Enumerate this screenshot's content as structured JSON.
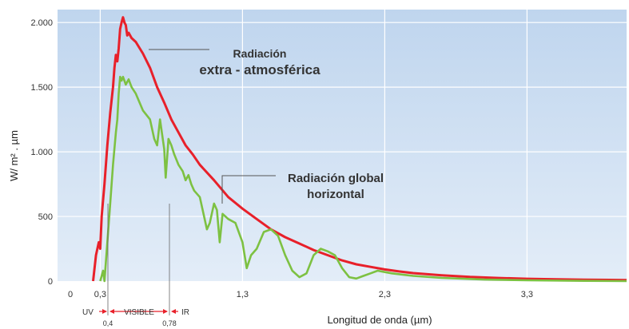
{
  "chart_data": {
    "type": "line",
    "title": "",
    "xlabel": "Longitud de onda (µm)",
    "ylabel": "W/ m² . µm",
    "xlim": [
      0,
      4.0
    ],
    "ylim": [
      0,
      2100
    ],
    "x_ticks": [
      {
        "value": 0,
        "label": "0"
      },
      {
        "value": 0.3,
        "label": "0,3"
      },
      {
        "value": 1.3,
        "label": "1,3"
      },
      {
        "value": 2.3,
        "label": "2,3"
      },
      {
        "value": 3.3,
        "label": "3,3"
      }
    ],
    "y_ticks": [
      {
        "value": 0,
        "label": "0"
      },
      {
        "value": 500,
        "label": "500"
      },
      {
        "value": 1000,
        "label": "1.000"
      },
      {
        "value": 1500,
        "label": "1.500"
      },
      {
        "value": 2000,
        "label": "2.000"
      }
    ],
    "grid": true,
    "background": "#c9dcf1",
    "series": [
      {
        "color": "#e8202a",
        "points": [
          [
            0.25,
            0
          ],
          [
            0.27,
            200
          ],
          [
            0.29,
            300
          ],
          [
            0.3,
            250
          ],
          [
            0.31,
            500
          ],
          [
            0.33,
            750
          ],
          [
            0.35,
            1050
          ],
          [
            0.37,
            1300
          ],
          [
            0.39,
            1500
          ],
          [
            0.4,
            1650
          ],
          [
            0.41,
            1750
          ],
          [
            0.42,
            1700
          ],
          [
            0.43,
            1800
          ],
          [
            0.44,
            1950
          ],
          [
            0.45,
            2000
          ],
          [
            0.46,
            2040
          ],
          [
            0.47,
            2000
          ],
          [
            0.48,
            1980
          ],
          [
            0.49,
            1900
          ],
          [
            0.5,
            1920
          ],
          [
            0.52,
            1880
          ],
          [
            0.55,
            1850
          ],
          [
            0.6,
            1760
          ],
          [
            0.65,
            1650
          ],
          [
            0.7,
            1500
          ],
          [
            0.75,
            1380
          ],
          [
            0.8,
            1250
          ],
          [
            0.85,
            1150
          ],
          [
            0.9,
            1050
          ],
          [
            0.95,
            980
          ],
          [
            1.0,
            900
          ],
          [
            1.1,
            780
          ],
          [
            1.2,
            650
          ],
          [
            1.3,
            560
          ],
          [
            1.4,
            480
          ],
          [
            1.5,
            400
          ],
          [
            1.6,
            340
          ],
          [
            1.7,
            290
          ],
          [
            1.8,
            240
          ],
          [
            1.9,
            200
          ],
          [
            2.0,
            160
          ],
          [
            2.1,
            130
          ],
          [
            2.2,
            110
          ],
          [
            2.3,
            90
          ],
          [
            2.4,
            75
          ],
          [
            2.5,
            62
          ],
          [
            2.7,
            45
          ],
          [
            2.9,
            32
          ],
          [
            3.1,
            24
          ],
          [
            3.3,
            18
          ],
          [
            3.5,
            14
          ],
          [
            3.7,
            11
          ],
          [
            4.0,
            8
          ]
        ]
      },
      {
        "color": "#7dc142",
        "points": [
          [
            0.3,
            0
          ],
          [
            0.32,
            80
          ],
          [
            0.33,
            0
          ],
          [
            0.35,
            300
          ],
          [
            0.37,
            600
          ],
          [
            0.39,
            900
          ],
          [
            0.41,
            1150
          ],
          [
            0.42,
            1250
          ],
          [
            0.43,
            1450
          ],
          [
            0.44,
            1580
          ],
          [
            0.45,
            1550
          ],
          [
            0.46,
            1580
          ],
          [
            0.48,
            1520
          ],
          [
            0.5,
            1560
          ],
          [
            0.52,
            1500
          ],
          [
            0.55,
            1450
          ],
          [
            0.6,
            1320
          ],
          [
            0.65,
            1250
          ],
          [
            0.68,
            1100
          ],
          [
            0.7,
            1050
          ],
          [
            0.72,
            1250
          ],
          [
            0.75,
            1020
          ],
          [
            0.76,
            800
          ],
          [
            0.78,
            1100
          ],
          [
            0.8,
            1050
          ],
          [
            0.82,
            980
          ],
          [
            0.85,
            900
          ],
          [
            0.88,
            850
          ],
          [
            0.9,
            780
          ],
          [
            0.92,
            820
          ],
          [
            0.94,
            750
          ],
          [
            0.96,
            700
          ],
          [
            1.0,
            650
          ],
          [
            1.05,
            400
          ],
          [
            1.07,
            450
          ],
          [
            1.1,
            600
          ],
          [
            1.12,
            550
          ],
          [
            1.14,
            300
          ],
          [
            1.16,
            520
          ],
          [
            1.2,
            480
          ],
          [
            1.25,
            450
          ],
          [
            1.3,
            300
          ],
          [
            1.33,
            100
          ],
          [
            1.36,
            200
          ],
          [
            1.4,
            250
          ],
          [
            1.45,
            380
          ],
          [
            1.5,
            400
          ],
          [
            1.55,
            350
          ],
          [
            1.6,
            200
          ],
          [
            1.65,
            80
          ],
          [
            1.7,
            30
          ],
          [
            1.75,
            60
          ],
          [
            1.8,
            200
          ],
          [
            1.85,
            250
          ],
          [
            1.9,
            230
          ],
          [
            1.95,
            200
          ],
          [
            2.0,
            100
          ],
          [
            2.05,
            30
          ],
          [
            2.1,
            20
          ],
          [
            2.15,
            40
          ],
          [
            2.2,
            60
          ],
          [
            2.25,
            80
          ],
          [
            2.3,
            70
          ],
          [
            2.35,
            60
          ],
          [
            2.5,
            40
          ],
          [
            2.7,
            25
          ],
          [
            3.0,
            12
          ],
          [
            3.3,
            6
          ],
          [
            3.7,
            2
          ],
          [
            4.0,
            0
          ]
        ]
      }
    ],
    "annotations": [
      {
        "lines": [
          "Radiación",
          "extra - atmosférica"
        ]
      },
      {
        "lines": [
          "Radiación global",
          "horizontal"
        ]
      }
    ],
    "bands": [
      {
        "label": "UV"
      },
      {
        "label": "VISIBLE"
      },
      {
        "label": "IR"
      }
    ],
    "band_edges": [
      {
        "value": 0.4,
        "label": "0,4"
      },
      {
        "value": 0.78,
        "label": "0,78"
      }
    ]
  }
}
